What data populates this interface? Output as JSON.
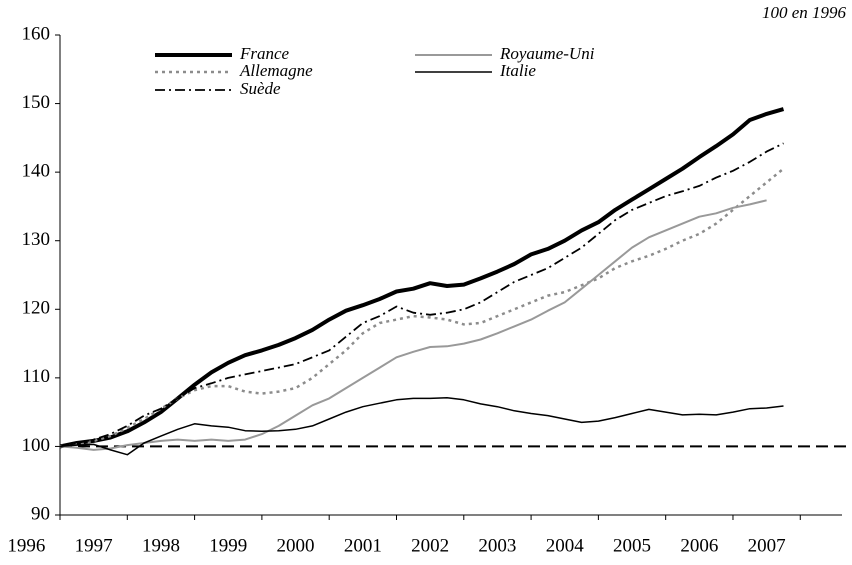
{
  "chart_data": {
    "type": "line",
    "note": "100 en 1996",
    "x": [
      1996,
      1996.25,
      1996.5,
      1996.75,
      1997,
      1997.25,
      1997.5,
      1997.75,
      1998,
      1998.25,
      1998.5,
      1998.75,
      1999,
      1999.25,
      1999.5,
      1999.75,
      2000,
      2000.25,
      2000.5,
      2000.75,
      2001,
      2001.25,
      2001.5,
      2001.75,
      2002,
      2002.25,
      2002.5,
      2002.75,
      2003,
      2003.25,
      2003.5,
      2003.75,
      2004,
      2004.25,
      2004.5,
      2004.75,
      2005,
      2005.25,
      2005.5,
      2005.75,
      2006,
      2006.25,
      2006.5,
      2006.75
    ],
    "series": [
      {
        "name": "France",
        "color": "#000000",
        "width": 4,
        "dash": "none",
        "values": [
          100,
          100.5,
          100.8,
          101.3,
          102.2,
          103.5,
          105,
          107,
          109,
          110.8,
          112.2,
          113.3,
          114,
          114.8,
          115.8,
          117,
          118.5,
          119.8,
          120.6,
          121.5,
          122.6,
          123,
          123.8,
          123.4,
          123.6,
          124.5,
          125.5,
          126.6,
          128,
          128.8,
          130,
          131.5,
          132.7,
          134.5,
          136,
          137.5,
          139,
          140.5,
          142.2,
          143.8,
          145.5,
          147.6,
          148.5,
          149.2
        ]
      },
      {
        "name": "Allemagne",
        "color": "#8c8c8c",
        "width": 2.5,
        "dash": "3 4",
        "values": [
          100,
          100.3,
          100.8,
          101.5,
          102.7,
          104,
          105.5,
          107,
          108.2,
          108.8,
          108.8,
          108,
          107.7,
          108,
          108.5,
          110,
          112,
          114,
          116.5,
          118,
          118.5,
          119,
          118.8,
          118.5,
          117.8,
          118,
          119,
          120,
          121,
          122,
          122.5,
          123.5,
          124.5,
          126,
          127,
          127.8,
          128.8,
          130,
          131,
          132.5,
          134.5,
          136.5,
          138.5,
          140.5
        ]
      },
      {
        "name": "Suède",
        "color": "#000000",
        "width": 1.8,
        "dash": "10 4 2 4",
        "values": [
          100,
          100.5,
          101,
          101.8,
          103,
          104.5,
          105.5,
          107,
          108.5,
          109.2,
          110,
          110.5,
          111,
          111.5,
          112,
          113,
          114,
          116,
          118,
          119,
          120.4,
          119.5,
          119.2,
          119.5,
          120,
          121,
          122.5,
          124,
          125,
          126,
          127.5,
          129,
          131,
          133,
          134.5,
          135.5,
          136.5,
          137.2,
          138,
          139.2,
          140.2,
          141.5,
          143,
          144.2
        ]
      },
      {
        "name": "Royaume-Uni",
        "color": "#999999",
        "width": 2,
        "dash": "none",
        "values": [
          100,
          99.8,
          99.5,
          99.7,
          100.2,
          100.5,
          100.8,
          101,
          100.8,
          101,
          100.8,
          101,
          101.8,
          103,
          104.5,
          106,
          107,
          108.5,
          110,
          111.5,
          113,
          113.8,
          114.5,
          114.6,
          115,
          115.6,
          116.5,
          117.5,
          118.5,
          119.8,
          121,
          123,
          125,
          127,
          129,
          130.5,
          131.5,
          132.5,
          133.5,
          134,
          134.8,
          135.3,
          135.9,
          null
        ]
      },
      {
        "name": "Italie",
        "color": "#000000",
        "width": 1.5,
        "dash": "none",
        "values": [
          100,
          100.2,
          100.3,
          99.5,
          98.8,
          100.5,
          101.5,
          102.5,
          103.3,
          103,
          102.8,
          102.3,
          102.2,
          102.3,
          102.5,
          103,
          104,
          105,
          105.8,
          106.3,
          106.8,
          107,
          107,
          107.1,
          106.8,
          106.2,
          105.8,
          105.2,
          104.8,
          104.5,
          104,
          103.5,
          103.7,
          104.2,
          104.8,
          105.4,
          105,
          104.6,
          104.7,
          104.6,
          105,
          105.5,
          105.6,
          105.9
        ]
      }
    ],
    "reference_line": 100,
    "xlim": [
      1996,
      2007.62
    ],
    "xticks": [
      1996,
      1997,
      1998,
      1999,
      2000,
      2001,
      2002,
      2003,
      2004,
      2005,
      2006,
      2007
    ],
    "ylim": [
      90,
      160
    ],
    "yticks": [
      90,
      100,
      110,
      120,
      130,
      140,
      150,
      160
    ]
  }
}
